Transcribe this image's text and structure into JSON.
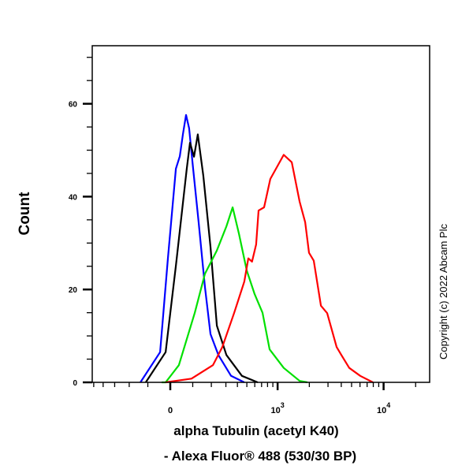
{
  "chart_data": {
    "type": "line",
    "title": "",
    "xlabel": [
      "alpha Tubulin (acetyl K40)",
      "- Alexa Fluor® 488 (530/30 BP)"
    ],
    "ylabel": "Count",
    "x_scale": "biexponential",
    "xlim": [
      -520,
      27000
    ],
    "ylim": [
      0,
      72.5
    ],
    "x_ticks": [
      {
        "value": 0,
        "label": "0",
        "sup": ""
      },
      {
        "value": 1000,
        "label": "10",
        "sup": "3"
      },
      {
        "value": 10000,
        "label": "10",
        "sup": "4"
      }
    ],
    "y_ticks": [
      0,
      20,
      40,
      60
    ],
    "grid": false,
    "legend": "none",
    "watermark": "Copyright (c) 2022 Abcam Plc",
    "series": [
      {
        "color": "#0000ff",
        "x": [
          -137,
          -44,
          -10,
          24,
          41,
          55,
          69,
          83,
          102,
          129,
          163,
          195,
          245,
          342,
          471
        ],
        "y": [
          0,
          6.5,
          26.7,
          46.0,
          48.7,
          53.5,
          57.6,
          54.7,
          46.0,
          34.6,
          20.5,
          10.4,
          5.9,
          1.4,
          0
        ]
      },
      {
        "color": "#000000",
        "x": [
          -110,
          -20,
          24,
          72,
          87,
          106,
          125,
          154,
          195,
          235,
          304,
          446,
          641
        ],
        "y": [
          0,
          6.5,
          25.1,
          46.0,
          51.6,
          48.6,
          53.4,
          44.5,
          29.2,
          12.2,
          5.9,
          1.4,
          0
        ]
      },
      {
        "color": "#00e000",
        "x": [
          -37,
          -20,
          37,
          110,
          163,
          235,
          304,
          356,
          415,
          499,
          598,
          715,
          838,
          1144,
          1620,
          1921
        ],
        "y": [
          0,
          0,
          3.7,
          15.0,
          23.4,
          28.4,
          33.6,
          37.7,
          32.0,
          24.1,
          19.0,
          15.0,
          7.1,
          3.1,
          0.3,
          0
        ]
      },
      {
        "color": "#ff0000",
        "x": [
          -20,
          94,
          210,
          273,
          370,
          471,
          517,
          564,
          619,
          654,
          740,
          851,
          1144,
          1364,
          1620,
          1826,
          1988,
          2204,
          2572,
          2946,
          3617,
          4008,
          4752,
          6039,
          7940
        ],
        "y": [
          0,
          0.8,
          3.7,
          7.6,
          15.0,
          21.7,
          26.7,
          26.0,
          29.7,
          37.0,
          37.7,
          43.8,
          49.0,
          47.4,
          38.9,
          34.5,
          27.9,
          26.2,
          16.5,
          14.9,
          7.6,
          5.9,
          3.1,
          1.4,
          0
        ]
      }
    ]
  }
}
